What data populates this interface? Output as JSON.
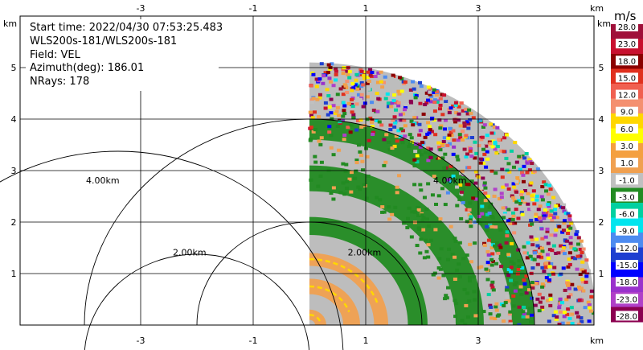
{
  "info": {
    "start_time": "Start time: 2022/04/30 07:53:25.483",
    "instrument": "WLS200s-181/WLS200s-181",
    "field": "Field: VEL",
    "azimuth": "Azimuth(deg): 186.01",
    "nrays": "NRays: 178"
  },
  "chart_data": {
    "type": "heatmap",
    "subtype": "ppi-sector",
    "x_axis": {
      "unit_label": "km",
      "ticks": [
        "-3",
        "-1",
        "1",
        "3"
      ],
      "tick_values": [
        -3,
        -1,
        1,
        3
      ],
      "range": [
        -5.5,
        4.5
      ]
    },
    "y_axis": {
      "unit_label": "km",
      "ticks": [
        "1",
        "2",
        "3",
        "4",
        "5"
      ],
      "tick_values": [
        1,
        2,
        3,
        4,
        5
      ],
      "range": [
        0,
        5.3
      ]
    },
    "grid": true,
    "range_rings": [
      {
        "label": "4.00km",
        "radius_km": 4.0
      },
      {
        "label": "2.00km",
        "radius_km": 2.0
      }
    ],
    "sector": {
      "origin_km": [
        0,
        0
      ],
      "max_range_km": 5.1,
      "azimuth_deg_start": 0,
      "azimuth_deg_end": 90
    },
    "colorbar": {
      "unit": "m/s",
      "labels": [
        "28.0",
        "23.0",
        "18.0",
        "15.0",
        "12.0",
        "9.0",
        "6.0",
        "3.0",
        "1.0",
        "-1.0",
        "-3.0",
        "-6.0",
        "-9.0",
        "-12.0",
        "-15.0",
        "-18.0",
        "-23.0",
        "-28.0"
      ],
      "colors": [
        "#a0103a",
        "#c8102e",
        "#8b0000",
        "#e0301e",
        "#f06050",
        "#f49070",
        "#ffd700",
        "#ffff00",
        "#f4a040",
        "#f0a050",
        "#c0c0c0",
        "#228b22",
        "#00d0a0",
        "#00e5ee",
        "#4d8bf0",
        "#1e3fd0",
        "#0000ff",
        "#9932cc",
        "#b040c8",
        "#8b0050"
      ]
    },
    "bands": [
      {
        "range_km": [
          0.1,
          0.3
        ],
        "value_class": "1.0"
      },
      {
        "range_km": [
          0.6,
          0.9
        ],
        "value_class": "1.0"
      },
      {
        "range_km": [
          1.15,
          1.4
        ],
        "value_class": "1.0"
      },
      {
        "range_km": [
          1.75,
          2.1
        ],
        "value_class": "-3.0"
      },
      {
        "range_km": [
          2.6,
          3.1
        ],
        "value_class": "-3.0"
      },
      {
        "range_km": [
          3.6,
          4.0
        ],
        "value_class": "-3.0"
      }
    ]
  }
}
